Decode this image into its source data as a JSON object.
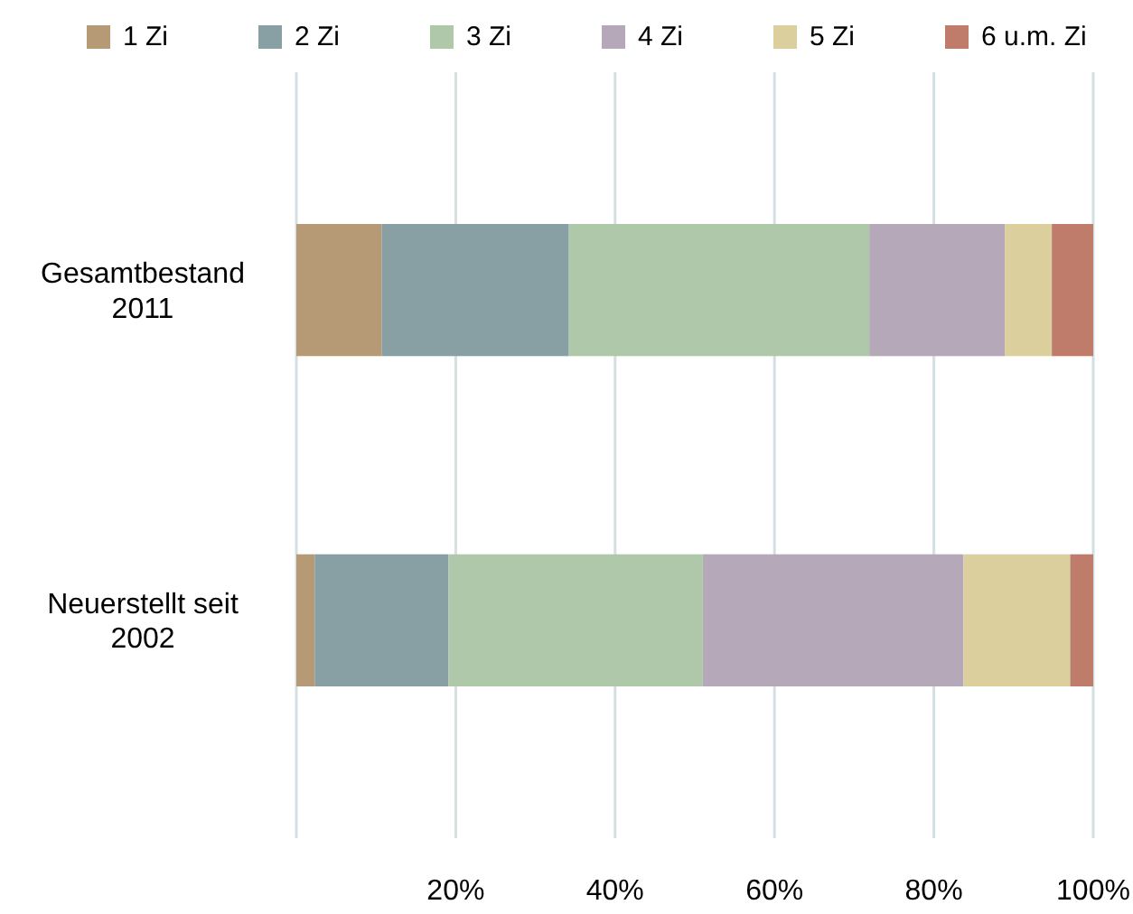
{
  "chart_data": {
    "type": "bar",
    "orientation": "horizontal",
    "stacked": true,
    "categories": [
      "Gesamtbestand 2011",
      "Neuerstellt seit 2002"
    ],
    "series": [
      {
        "name": "1 Zi",
        "color": "#b69a76",
        "values": [
          10.7,
          2.3
        ]
      },
      {
        "name": "2 Zi",
        "color": "#889fa3",
        "values": [
          23.5,
          16.8
        ]
      },
      {
        "name": "3 Zi",
        "color": "#aec8a9",
        "values": [
          37.7,
          31.9
        ]
      },
      {
        "name": "4 Zi",
        "color": "#b5a9b9",
        "values": [
          17.0,
          32.7
        ]
      },
      {
        "name": "5 Zi",
        "color": "#dccf9e",
        "values": [
          5.9,
          13.4
        ]
      },
      {
        "name": "6 u.m. Zi",
        "color": "#c07c6a",
        "values": [
          5.2,
          2.9
        ]
      }
    ],
    "xlim": [
      0,
      100
    ],
    "xticks": [
      {
        "value": 0,
        "label": null
      },
      {
        "value": 20,
        "label": "20%"
      },
      {
        "value": 40,
        "label": "40%"
      },
      {
        "value": 60,
        "label": "60%"
      },
      {
        "value": 80,
        "label": "80%"
      },
      {
        "value": 100,
        "label": "100%"
      }
    ],
    "grid": "x",
    "legend": "top"
  }
}
